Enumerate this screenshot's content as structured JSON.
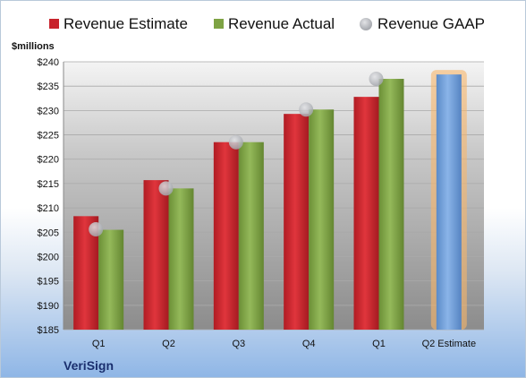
{
  "chart_data": {
    "type": "bar",
    "unit_label": "$millions",
    "company": "VeriSign",
    "categories": [
      "Q1",
      "Q2",
      "Q3",
      "Q4",
      "Q1",
      "Q2 Estimate"
    ],
    "ylim": [
      185,
      240
    ],
    "yticks": [
      "$185",
      "$190",
      "$195",
      "$200",
      "$205",
      "$210",
      "$215",
      "$220",
      "$225",
      "$230",
      "$235",
      "$240"
    ],
    "yticks_values": [
      185,
      190,
      195,
      200,
      205,
      210,
      215,
      220,
      225,
      230,
      235,
      240
    ],
    "grid": true,
    "legend_position": "top",
    "series": [
      {
        "name": "Revenue Estimate",
        "type": "bar",
        "color": "#c8232c",
        "values": [
          208.3,
          215.7,
          223.5,
          229.3,
          232.8,
          null
        ]
      },
      {
        "name": "Revenue Actual",
        "type": "bar",
        "color": "#7ea344",
        "values": [
          205.5,
          214.0,
          223.5,
          230.2,
          236.5,
          null
        ]
      },
      {
        "name": "Revenue GAAP",
        "type": "marker",
        "color": "#b9bbc0",
        "values": [
          205.6,
          214.0,
          223.5,
          230.2,
          236.5,
          null
        ]
      },
      {
        "name": "",
        "type": "highlight-bar",
        "color": "#6e9fd6",
        "values": [
          null,
          null,
          null,
          null,
          null,
          237.4
        ]
      }
    ]
  }
}
